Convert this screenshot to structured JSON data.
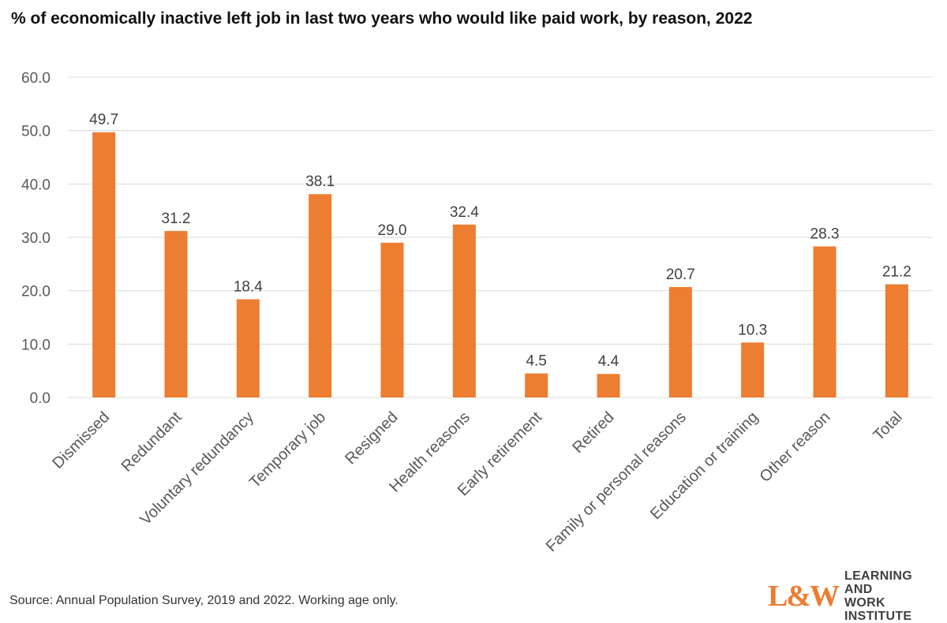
{
  "title": "% of economically inactive left job in last two years who would like paid work, by reason, 2022",
  "source": "Source: Annual Population Survey, 2019 and 2022. Working age only.",
  "logo": {
    "mark": "L&W",
    "line1": "LEARNING AND",
    "line2": "WORK INSTITUTE",
    "mark_color": "#ED7D31"
  },
  "chart_data": {
    "type": "bar",
    "categories": [
      "Dismissed",
      "Redundant",
      "Voluntary redundancy",
      "Temporary job",
      "Resigned",
      "Health reasons",
      "Early retirement",
      "Retired",
      "Family or personal reasons",
      "Education or training",
      "Other reason",
      "Total"
    ],
    "values": [
      49.7,
      31.2,
      18.4,
      38.1,
      29.0,
      32.4,
      4.5,
      4.4,
      20.7,
      10.3,
      28.3,
      21.2
    ],
    "value_labels": [
      "49.7",
      "31.2",
      "18.4",
      "38.1",
      "29.0",
      "32.4",
      "4.5",
      "4.4",
      "20.7",
      "10.3",
      "28.3",
      "21.2"
    ],
    "yticks": [
      "0.0",
      "10.0",
      "20.0",
      "30.0",
      "40.0",
      "50.0",
      "60.0"
    ],
    "ylim": [
      0,
      60
    ],
    "xlabel": "",
    "ylabel": "",
    "grid": true,
    "colors": {
      "bar": "#ED7D31",
      "grid": "#D9D9D9"
    }
  }
}
